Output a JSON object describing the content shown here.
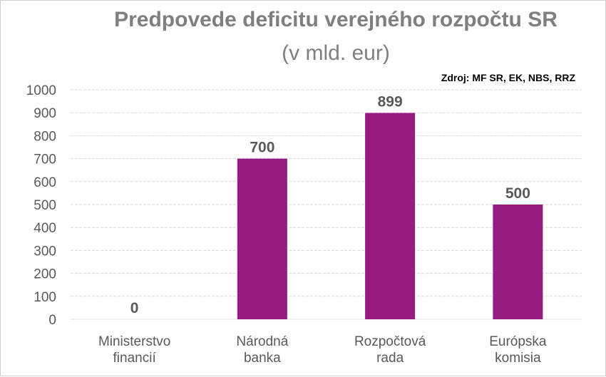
{
  "chart_data": {
    "type": "bar",
    "title": "Predpovede deficitu verejného rozpočtu SR",
    "subtitle": "(v mld. eur)",
    "source": "Zdroj: MF SR, EK, NBS, RRZ",
    "categories": [
      [
        "Ministerstvo",
        "financií"
      ],
      [
        "Národná",
        "banka"
      ],
      [
        "Rozpočtová",
        "rada"
      ],
      [
        "Európska",
        "komisia"
      ]
    ],
    "values": [
      0,
      700,
      899,
      500
    ],
    "data_labels": [
      "0",
      "700",
      "899",
      "500"
    ],
    "y_ticks": [
      "0",
      "100",
      "200",
      "300",
      "400",
      "500",
      "600",
      "700",
      "800",
      "900",
      "1000"
    ],
    "ylim": [
      0,
      1000
    ],
    "grid": true,
    "bar_color": "#951b81",
    "grid_color": "#d9d9d9"
  }
}
